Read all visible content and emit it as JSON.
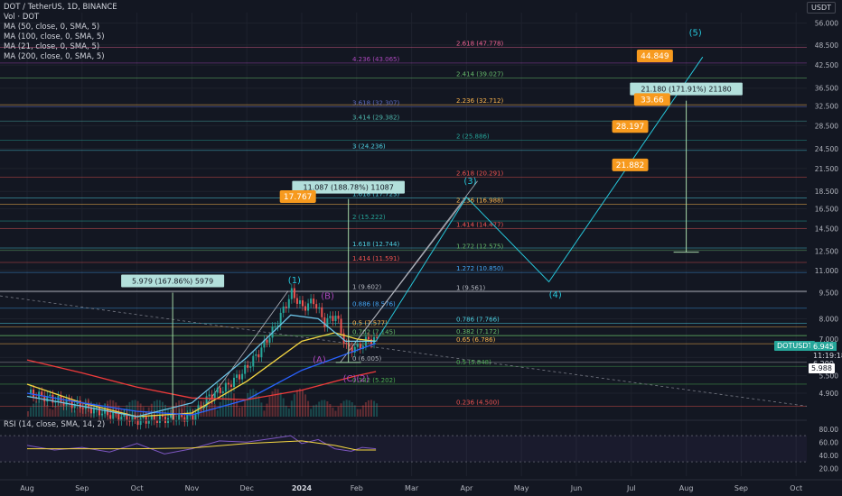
{
  "header": {
    "title": "DOT / TetherUS, 1D, BINANCE",
    "indicators": [
      "Vol · DOT",
      "MA (50, close, 0, SMA, 5)",
      "MA (100, close, 0, SMA, 5)",
      "MA (21, close, 0, SMA, 5)",
      "MA (200, close, 0, SMA, 5)"
    ],
    "rsi": "RSI (14, close, SMA, 14, 2)",
    "currency": "USDT"
  },
  "colors": {
    "background": "#131722",
    "up": "#26a69a",
    "down": "#ef5350",
    "ma50": "#f5d742",
    "ma100": "#2962ff",
    "ma200": "#ef3b3b",
    "ma21": "#6dc4e8",
    "wave": "#26c6da",
    "target": "#f79a1e"
  },
  "chart_data": {
    "type": "line",
    "price_axis": {
      "scale": "log",
      "tick_labels": [
        "56.000",
        "48.500",
        "42.500",
        "36.500",
        "32.500",
        "28.500",
        "24.500",
        "21.500",
        "18.500",
        "16.500",
        "14.500",
        "12.500",
        "11.000",
        "9.500",
        "8.000",
        "7.000",
        "6.200",
        "5.500",
        "4.900"
      ],
      "tick_values": [
        56,
        48.5,
        42.5,
        36.5,
        32.5,
        28.5,
        24.5,
        21.5,
        18.5,
        16.5,
        14.5,
        12.5,
        11,
        9.5,
        8,
        7,
        6.2,
        5.5,
        4.9
      ],
      "current_price": "6.945",
      "countdown": "11:19:18",
      "symbol_tag": "DOTUSDT",
      "secondary_tag": "5.988",
      "secondary_small": "6.200"
    },
    "time_axis": {
      "tick_labels": [
        "Aug",
        "Sep",
        "Oct",
        "Nov",
        "Dec",
        "2024",
        "Feb",
        "Mar",
        "Apr",
        "May",
        "Jun",
        "Jul",
        "Aug",
        "Sep",
        "Oct"
      ],
      "tick_months": [
        0,
        1,
        2,
        3,
        4,
        5,
        6,
        7,
        8,
        9,
        10,
        11,
        12,
        13,
        14
      ]
    },
    "rsi_axis": {
      "tick_labels": [
        "80.00",
        "60.00",
        "40.00",
        "20.00"
      ],
      "tick_values": [
        80,
        60,
        40,
        20
      ]
    },
    "price_path": [
      [
        0.0,
        4.9
      ],
      [
        0.5,
        4.7
      ],
      [
        1.0,
        4.5
      ],
      [
        1.5,
        4.25
      ],
      [
        2.0,
        4.1
      ],
      [
        2.5,
        4.15
      ],
      [
        3.0,
        4.2
      ],
      [
        3.3,
        4.8
      ],
      [
        3.6,
        5.1
      ],
      [
        3.9,
        5.6
      ],
      [
        4.2,
        6.4
      ],
      [
        4.5,
        7.6
      ],
      [
        4.8,
        9.5
      ],
      [
        5.0,
        8.6
      ],
      [
        5.2,
        9.0
      ],
      [
        5.4,
        7.8
      ],
      [
        5.6,
        8.2
      ],
      [
        5.8,
        6.6
      ],
      [
        6.0,
        6.6
      ],
      [
        6.2,
        7.0
      ],
      [
        6.35,
        6.95
      ]
    ],
    "ma_lines": [
      {
        "key": "ma50",
        "points": [
          [
            0.0,
            5.2
          ],
          [
            1.0,
            4.6
          ],
          [
            2.0,
            4.2
          ],
          [
            3.0,
            4.3
          ],
          [
            4.0,
            5.3
          ],
          [
            5.0,
            6.9
          ],
          [
            5.6,
            7.3
          ],
          [
            6.0,
            7.0
          ],
          [
            6.35,
            6.9
          ]
        ]
      },
      {
        "key": "ma100",
        "points": [
          [
            0.0,
            4.9
          ],
          [
            1.0,
            4.6
          ],
          [
            2.0,
            4.35
          ],
          [
            3.0,
            4.25
          ],
          [
            4.0,
            4.7
          ],
          [
            5.0,
            5.7
          ],
          [
            6.0,
            6.5
          ],
          [
            6.35,
            6.8
          ]
        ]
      },
      {
        "key": "ma200",
        "points": [
          [
            0.0,
            6.1
          ],
          [
            1.0,
            5.6
          ],
          [
            2.0,
            5.1
          ],
          [
            3.0,
            4.75
          ],
          [
            4.0,
            4.7
          ],
          [
            5.0,
            5.0
          ],
          [
            6.0,
            5.5
          ],
          [
            6.35,
            5.65
          ]
        ]
      },
      {
        "key": "ma21",
        "points": [
          [
            0.0,
            4.8
          ],
          [
            1.0,
            4.5
          ],
          [
            2.0,
            4.2
          ],
          [
            3.0,
            4.6
          ],
          [
            4.0,
            6.2
          ],
          [
            4.8,
            8.2
          ],
          [
            5.3,
            8.0
          ],
          [
            5.8,
            6.9
          ],
          [
            6.35,
            6.9
          ]
        ]
      }
    ],
    "wave_path": [
      [
        6.35,
        6.9
      ],
      [
        8.0,
        17.8
      ],
      [
        9.5,
        10.2
      ],
      [
        12.3,
        44.8
      ]
    ],
    "wave_labels": [
      {
        "text": "(1)",
        "m": 4.75,
        "v": 10.1,
        "color": "#26c6da"
      },
      {
        "text": "(B)",
        "m": 5.35,
        "v": 9.1,
        "color": "#ab47bc"
      },
      {
        "text": "(A)",
        "m": 5.2,
        "v": 6.0,
        "color": "#ab47bc"
      },
      {
        "text": "(C)(2)",
        "m": 5.75,
        "v": 5.3,
        "color": "#ab47bc"
      },
      {
        "text": "(3)",
        "m": 7.95,
        "v": 19.4,
        "color": "#26c6da"
      },
      {
        "text": "(4)",
        "m": 9.5,
        "v": 9.2,
        "color": "#26c6da"
      },
      {
        "text": "(5)",
        "m": 12.05,
        "v": 51.5,
        "color": "#26c6da"
      }
    ],
    "fib_levels": [
      {
        "label": "2.618 (47.778)",
        "v": 47.778,
        "color": "#f06292"
      },
      {
        "label": "4.236 (43.065)",
        "v": 43.065,
        "color": "#ab47bc"
      },
      {
        "label": "2.414 (39.027)",
        "v": 39.027,
        "color": "#66bb6a"
      },
      {
        "label": "3.618 (32.307)",
        "v": 32.307,
        "color": "#5c6bc0"
      },
      {
        "label": "2.236 (32.712)",
        "v": 32.712,
        "color": "#ffb74d"
      },
      {
        "label": "3.414 (29.382)",
        "v": 29.382,
        "color": "#4db6ac"
      },
      {
        "label": "2 (25.886)",
        "v": 25.886,
        "color": "#26a69a"
      },
      {
        "label": "3 (24.236)",
        "v": 24.236,
        "color": "#4dd0e1"
      },
      {
        "label": "2.618 (20.291)",
        "v": 20.291,
        "color": "#ef5350"
      },
      {
        "label": "1.618 (17.723)",
        "v": 17.723,
        "color": "#4dd0e1"
      },
      {
        "label": "2.236 (16.988)",
        "v": 16.988,
        "color": "#ffb74d"
      },
      {
        "label": "2 (15.222)",
        "v": 15.222,
        "color": "#26a69a"
      },
      {
        "label": "1.414 (14.477)",
        "v": 14.477,
        "color": "#ef5350"
      },
      {
        "label": "1.618 (12.744)",
        "v": 12.744,
        "color": "#4dd0e1"
      },
      {
        "label": "1.272 (12.575)",
        "v": 12.575,
        "color": "#66bb6a"
      },
      {
        "label": "1.414 (11.591)",
        "v": 11.591,
        "color": "#ef5350"
      },
      {
        "label": "1.272 (10.850)",
        "v": 10.85,
        "color": "#42a5f5"
      },
      {
        "label": "1 (9.602)",
        "v": 9.602,
        "color": "#b2b5be"
      },
      {
        "label": "1 (9.561)",
        "v": 9.561,
        "color": "#b2b5be"
      },
      {
        "label": "0.886 (8.576)",
        "v": 8.576,
        "color": "#42a5f5"
      },
      {
        "label": "0.786 (7.766)",
        "v": 7.766,
        "color": "#4dd0e1"
      },
      {
        "label": "0.5 (7.577)",
        "v": 7.577,
        "color": "#ffb74d"
      },
      {
        "label": "0.382 (7.172)",
        "v": 7.172,
        "color": "#66bb6a"
      },
      {
        "label": "0.702 (7.145)",
        "v": 7.145,
        "color": "#66bb6a"
      },
      {
        "label": "0.65 (6.786)",
        "v": 6.786,
        "color": "#ffb74d"
      },
      {
        "label": "0 (6.005)",
        "v": 6.005,
        "color": "#b2b5be"
      },
      {
        "label": "0.5 (5.848)",
        "v": 5.848,
        "color": "#4caf50"
      },
      {
        "label": "0.382 (5.202)",
        "v": 5.202,
        "color": "#4caf50"
      },
      {
        "label": "0.236 (4.500)",
        "v": 4.5,
        "color": "#ef5350"
      }
    ],
    "measurements": [
      {
        "label": "5.979 (167.86%) 5979",
        "from": 4.1,
        "to": 9.5,
        "m": 2.65
      },
      {
        "label": "11.087 (188.78%) 11087",
        "from": 6.0,
        "to": 17.6,
        "m": 5.85
      },
      {
        "label": "21.180 (171.91%) 21180",
        "from": 12.4,
        "to": 33.6,
        "m": 12.0
      }
    ],
    "targets": [
      {
        "label": "44.849",
        "v": 44.849,
        "m": 11.1
      },
      {
        "label": "33.66",
        "v": 33.66,
        "m": 11.05
      },
      {
        "label": "28.197",
        "v": 28.197,
        "m": 10.65
      },
      {
        "label": "21.882",
        "v": 21.882,
        "m": 10.65
      },
      {
        "label": "17.767",
        "v": 17.767,
        "m": 4.6
      }
    ],
    "rsi_series": [
      [
        0.0,
        55
      ],
      [
        0.5,
        48
      ],
      [
        1.0,
        52
      ],
      [
        1.5,
        45
      ],
      [
        2.0,
        58
      ],
      [
        2.5,
        42
      ],
      [
        3.0,
        50
      ],
      [
        3.5,
        62
      ],
      [
        4.0,
        60
      ],
      [
        4.5,
        66
      ],
      [
        4.8,
        70
      ],
      [
        5.0,
        58
      ],
      [
        5.3,
        64
      ],
      [
        5.6,
        50
      ],
      [
        5.9,
        46
      ],
      [
        6.1,
        52
      ],
      [
        6.35,
        50
      ]
    ],
    "rsi_ma": [
      [
        0.0,
        50
      ],
      [
        1.0,
        50
      ],
      [
        2.0,
        50
      ],
      [
        3.0,
        51
      ],
      [
        4.0,
        58
      ],
      [
        5.0,
        62
      ],
      [
        5.6,
        55
      ],
      [
        6.0,
        48
      ],
      [
        6.35,
        48
      ]
    ]
  }
}
